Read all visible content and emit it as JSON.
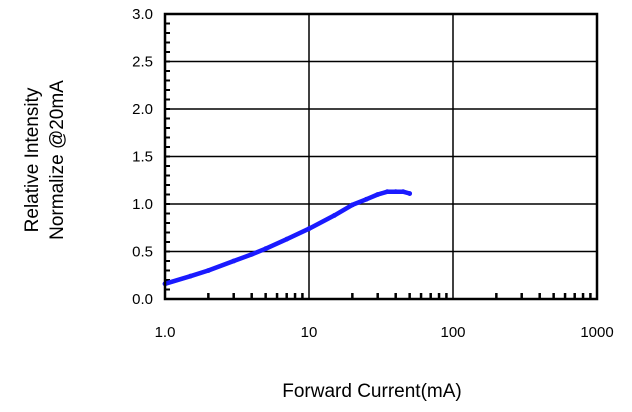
{
  "chart_data": {
    "type": "line",
    "title": "",
    "xlabel": "Forward Current(mA)",
    "ylabel_lines": [
      "Relative Intensity",
      "Normalize @20mA"
    ],
    "x_scale": "log",
    "xlim": [
      1,
      1000
    ],
    "ylim": [
      0,
      3
    ],
    "grid": true,
    "x_ticks": [
      1,
      10,
      100,
      1000
    ],
    "x_tick_labels": [
      "1.0",
      "10",
      "100",
      "1000"
    ],
    "y_ticks": [
      0,
      0.5,
      1,
      1.5,
      2,
      2.5,
      3
    ],
    "y_tick_labels": [
      "0.0",
      "0.5",
      "1.0",
      "1.5",
      "2.0",
      "2.5",
      "3.0"
    ],
    "series": [
      {
        "color": "#1a1aff",
        "x": [
          1,
          1.5,
          2,
          3,
          4,
          5,
          7,
          10,
          15,
          20,
          25,
          30,
          35,
          40,
          45,
          50
        ],
        "y": [
          0.16,
          0.24,
          0.3,
          0.4,
          0.47,
          0.53,
          0.63,
          0.74,
          0.88,
          0.99,
          1.05,
          1.1,
          1.13,
          1.13,
          1.13,
          1.11
        ]
      }
    ]
  }
}
